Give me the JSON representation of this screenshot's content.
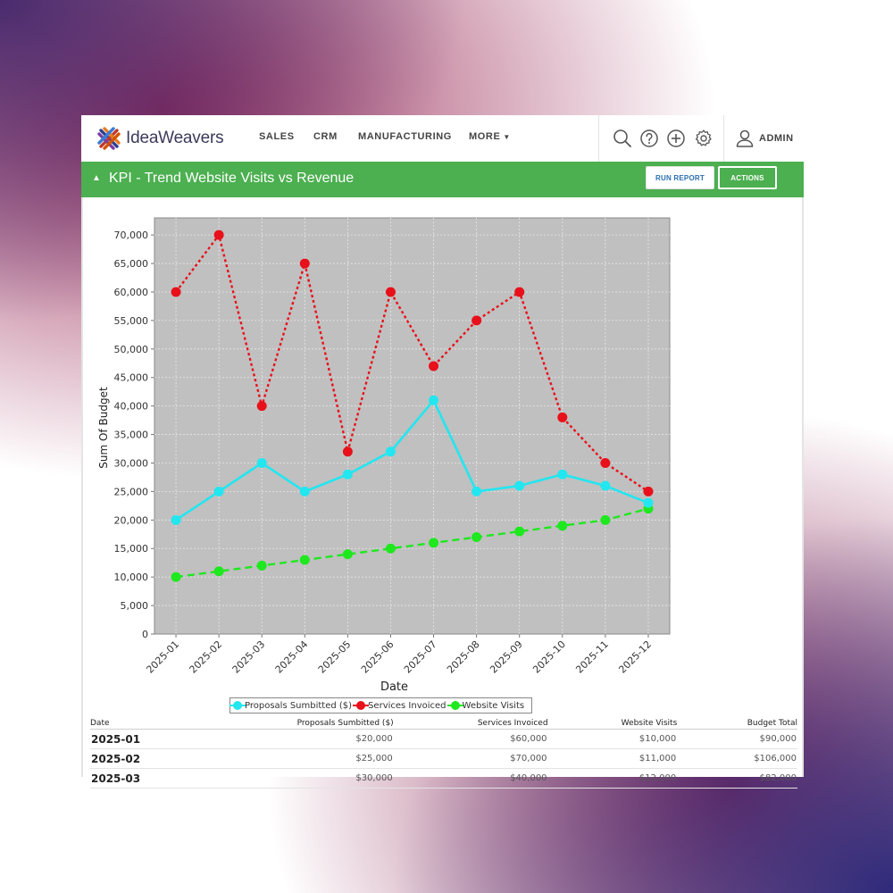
{
  "brand": {
    "name": "IdeaWeavers"
  },
  "nav": {
    "items": [
      "SALES",
      "CRM",
      "MANUFACTURING",
      "MORE"
    ]
  },
  "header_icons": [
    "search-icon",
    "help-icon",
    "add-icon",
    "gear-icon",
    "user-icon"
  ],
  "user": {
    "label": "ADMIN"
  },
  "report": {
    "title": "KPI - Trend Website Visits vs Revenue",
    "run_button": "RUN REPORT",
    "actions_button": "ACTIONS"
  },
  "colors": {
    "accent_green": "#4caf50",
    "series_proposals": "#22e6f0",
    "series_services": "#e8101a",
    "series_visits": "#1ee81e",
    "plot_background": "#c0c0c0"
  },
  "chart_data": {
    "type": "line",
    "title": "",
    "xlabel": "Date",
    "ylabel": "Sum Of Budget",
    "categories": [
      "2025-01",
      "2025-02",
      "2025-03",
      "2025-04",
      "2025-05",
      "2025-06",
      "2025-07",
      "2025-08",
      "2025-09",
      "2025-10",
      "2025-11",
      "2025-12"
    ],
    "ylim": [
      0,
      73000
    ],
    "yticks": [
      0,
      5000,
      10000,
      15000,
      20000,
      25000,
      30000,
      35000,
      40000,
      45000,
      50000,
      55000,
      60000,
      65000,
      70000
    ],
    "ytick_labels": [
      "0",
      "5,000",
      "10,000",
      "15,000",
      "20,000",
      "25,000",
      "30,000",
      "35,000",
      "40,000",
      "45,000",
      "50,000",
      "55,000",
      "60,000",
      "65,000",
      "70,000"
    ],
    "grid": true,
    "legend_position": "bottom",
    "series": [
      {
        "name": "Proposals Sumbitted ($)",
        "style": "solid",
        "values": [
          20000,
          25000,
          30000,
          25000,
          28000,
          32000,
          41000,
          25000,
          26000,
          28000,
          26000,
          23000
        ]
      },
      {
        "name": "Services Invoiced",
        "style": "dotted",
        "values": [
          60000,
          70000,
          40000,
          65000,
          32000,
          60000,
          47000,
          55000,
          60000,
          38000,
          30000,
          25000
        ]
      },
      {
        "name": "Website Visits",
        "style": "dashed",
        "values": [
          10000,
          11000,
          12000,
          13000,
          14000,
          15000,
          16000,
          17000,
          18000,
          19000,
          20000,
          22000
        ]
      }
    ]
  },
  "table": {
    "headers": [
      "Date",
      "Proposals Sumbitted ($)",
      "Services Invoiced",
      "Website Visits",
      "Budget Total"
    ],
    "rows": [
      [
        "2025-01",
        "$20,000",
        "$60,000",
        "$10,000",
        "$90,000"
      ],
      [
        "2025-02",
        "$25,000",
        "$70,000",
        "$11,000",
        "$106,000"
      ],
      [
        "2025-03",
        "$30,000",
        "$40,000",
        "$12,000",
        "$82,000"
      ]
    ]
  }
}
